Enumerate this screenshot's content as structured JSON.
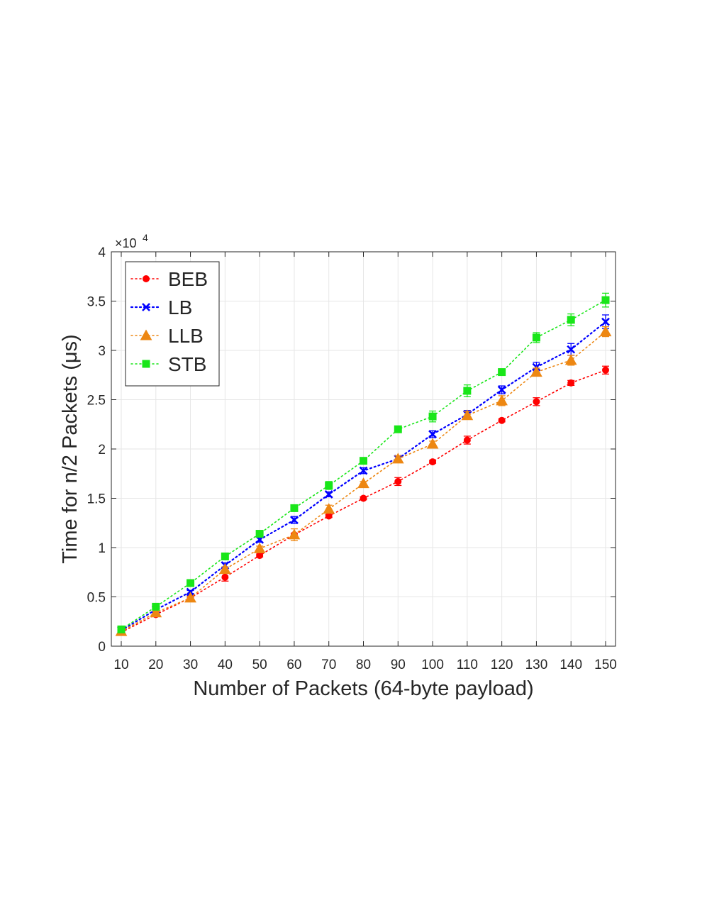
{
  "chart_data": {
    "type": "line",
    "xlabel": "Number of Packets (64-byte payload)",
    "ylabel": "Time for n/2 Packets (μs)",
    "y_exponent_label": "×10",
    "y_exponent_power": "4",
    "x": [
      10,
      20,
      30,
      40,
      50,
      60,
      70,
      80,
      90,
      100,
      110,
      120,
      130,
      140,
      150
    ],
    "x_tick_labels": [
      "10",
      "20",
      "30",
      "40",
      "50",
      "60",
      "70",
      "80",
      "90",
      "100",
      "110",
      "120",
      "130",
      "140",
      "150"
    ],
    "xlim": [
      10,
      150
    ],
    "ylim": [
      0,
      40000
    ],
    "y_ticks": [
      0,
      5000,
      10000,
      15000,
      20000,
      25000,
      30000,
      35000,
      40000
    ],
    "y_tick_labels": [
      "0",
      "0.5",
      "1",
      "1.5",
      "2",
      "2.5",
      "3",
      "3.5",
      "4"
    ],
    "grid": true,
    "legend_position": "top-left",
    "series": [
      {
        "name": "BEB",
        "color": "#ff0000",
        "marker": "circle",
        "values": [
          1400,
          3200,
          4900,
          7000,
          9200,
          11300,
          13200,
          15000,
          16700,
          18700,
          20900,
          22900,
          24800,
          26700,
          28000
        ],
        "errors": [
          150,
          150,
          150,
          400,
          150,
          150,
          150,
          150,
          400,
          150,
          400,
          150,
          400,
          250,
          400
        ]
      },
      {
        "name": "LB",
        "color": "#0000ff",
        "marker": "x",
        "values": [
          1600,
          3700,
          5500,
          8200,
          10800,
          12800,
          15400,
          17800,
          19000,
          21500,
          23500,
          26000,
          28300,
          30100,
          32900
        ],
        "errors": [
          150,
          150,
          150,
          250,
          250,
          350,
          250,
          300,
          300,
          350,
          400,
          400,
          500,
          600,
          700
        ]
      },
      {
        "name": "LLB",
        "color": "#ed8712",
        "marker": "triangle",
        "values": [
          1500,
          3400,
          4900,
          7800,
          9900,
          11300,
          13900,
          16500,
          19000,
          20500,
          23400,
          24900,
          27800,
          29000,
          31900
        ],
        "errors": [
          150,
          150,
          150,
          250,
          250,
          600,
          400,
          200,
          300,
          300,
          400,
          500,
          400,
          500,
          500
        ]
      },
      {
        "name": "STB",
        "color": "#19e619",
        "marker": "square",
        "values": [
          1700,
          4000,
          6400,
          9100,
          11400,
          14000,
          16300,
          18800,
          22000,
          23300,
          25900,
          27800,
          31300,
          33100,
          35100
        ],
        "errors": [
          150,
          250,
          350,
          250,
          250,
          200,
          400,
          200,
          200,
          550,
          600,
          300,
          500,
          600,
          700
        ]
      }
    ]
  }
}
